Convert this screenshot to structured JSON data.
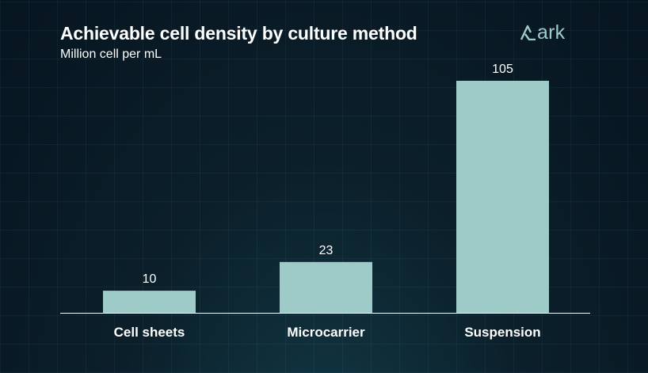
{
  "header": {
    "title": "Achievable cell density by culture method",
    "subtitle": "Million cell per mL"
  },
  "logo": {
    "text": "ark",
    "icon": "ark-logo-icon"
  },
  "colors": {
    "bar": "#9ecbc8",
    "axis": "#ffffff",
    "text": "#ffffff",
    "logo": "#9ecbc8"
  },
  "chart_data": {
    "type": "bar",
    "title": "Achievable cell density by culture method",
    "subtitle": "Million cell per mL",
    "categories": [
      "Cell sheets",
      "Microcarrier",
      "Suspension"
    ],
    "values": [
      10,
      23,
      105
    ],
    "data_labels": [
      "10",
      "23",
      "105"
    ],
    "xlabel": "",
    "ylabel": "Million cell per mL",
    "ylim": [
      0,
      105
    ],
    "grid": false,
    "legend": "none"
  }
}
